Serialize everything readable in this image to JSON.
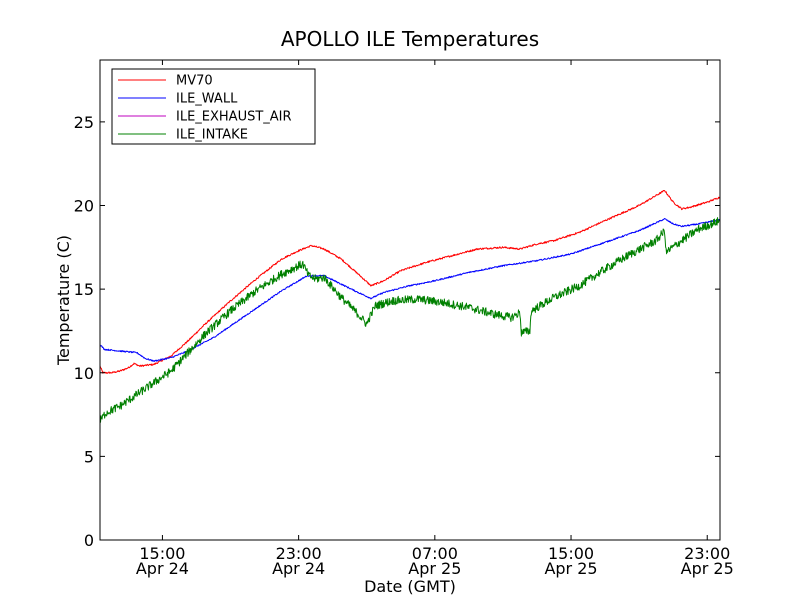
{
  "chart_data": {
    "type": "line",
    "title": "APOLLO ILE Temperatures",
    "xlabel": "Date (GMT)",
    "ylabel": "Temperature (C)",
    "xlim": [
      "2014-04-24T11:20",
      "2014-04-25T23:45"
    ],
    "ylim": [
      0,
      28.7
    ],
    "y_ticks": [
      0,
      5,
      10,
      15,
      20,
      25
    ],
    "x_ticks": [
      {
        "x": "2014-04-24T15:00",
        "label": "15:00",
        "date_label": "Apr 24"
      },
      {
        "x": "2014-04-24T23:00",
        "label": "23:00",
        "date_label": "Apr 24"
      },
      {
        "x": "2014-04-25T07:00",
        "label": "07:00",
        "date_label": "Apr 25"
      },
      {
        "x": "2014-04-25T15:00",
        "label": "15:00",
        "date_label": "Apr 25"
      },
      {
        "x": "2014-04-25T23:00",
        "label": "23:00",
        "date_label": "Apr 25"
      }
    ],
    "grid": false,
    "legend_position": "top-left",
    "series": [
      {
        "name": "MV70",
        "color": "#ff0000",
        "noise": 0.05,
        "points": [
          [
            "2014-04-24T11:20",
            10.4
          ],
          [
            "2014-04-24T11:30",
            10.0
          ],
          [
            "2014-04-24T12:00",
            10.0
          ],
          [
            "2014-04-24T12:30",
            10.1
          ],
          [
            "2014-04-24T13:00",
            10.3
          ],
          [
            "2014-04-24T13:20",
            10.55
          ],
          [
            "2014-04-24T13:40",
            10.4
          ],
          [
            "2014-04-24T14:30",
            10.5
          ],
          [
            "2014-04-24T15:30",
            11.0
          ],
          [
            "2014-04-24T16:30",
            11.9
          ],
          [
            "2014-04-24T17:30",
            12.9
          ],
          [
            "2014-04-24T19:00",
            14.3
          ],
          [
            "2014-04-24T20:30",
            15.6
          ],
          [
            "2014-04-24T22:00",
            16.8
          ],
          [
            "2014-04-24T23:00",
            17.3
          ],
          [
            "2014-04-24T23:45",
            17.6
          ],
          [
            "2014-04-25T00:30",
            17.4
          ],
          [
            "2014-04-25T01:30",
            16.8
          ],
          [
            "2014-04-25T02:30",
            15.9
          ],
          [
            "2014-04-25T03:15",
            15.2
          ],
          [
            "2014-04-25T04:00",
            15.5
          ],
          [
            "2014-04-25T05:00",
            16.1
          ],
          [
            "2014-04-25T06:30",
            16.6
          ],
          [
            "2014-04-25T08:00",
            17.0
          ],
          [
            "2014-04-25T09:30",
            17.4
          ],
          [
            "2014-04-25T11:00",
            17.5
          ],
          [
            "2014-04-25T12:00",
            17.4
          ],
          [
            "2014-04-25T13:00",
            17.7
          ],
          [
            "2014-04-25T14:00",
            17.9
          ],
          [
            "2014-04-25T15:30",
            18.4
          ],
          [
            "2014-04-25T17:00",
            19.1
          ],
          [
            "2014-04-25T19:00",
            20.0
          ],
          [
            "2014-04-25T20:30",
            20.9
          ],
          [
            "2014-04-25T21:00",
            20.2
          ],
          [
            "2014-04-25T21:30",
            19.8
          ],
          [
            "2014-04-25T22:00",
            19.9
          ],
          [
            "2014-04-25T23:00",
            20.2
          ],
          [
            "2014-04-25T23:45",
            20.5
          ]
        ]
      },
      {
        "name": "ILE_WALL",
        "color": "#0000ff",
        "noise": 0.04,
        "points": [
          [
            "2014-04-24T11:20",
            11.7
          ],
          [
            "2014-04-24T11:35",
            11.4
          ],
          [
            "2014-04-24T12:30",
            11.3
          ],
          [
            "2014-04-24T13:30",
            11.2
          ],
          [
            "2014-04-24T14:00",
            10.85
          ],
          [
            "2014-04-24T14:30",
            10.7
          ],
          [
            "2014-04-24T15:30",
            10.9
          ],
          [
            "2014-04-24T16:30",
            11.3
          ],
          [
            "2014-04-24T18:00",
            12.1
          ],
          [
            "2014-04-24T20:00",
            13.5
          ],
          [
            "2014-04-24T22:00",
            14.9
          ],
          [
            "2014-04-24T23:30",
            15.8
          ],
          [
            "2014-04-25T00:30",
            15.8
          ],
          [
            "2014-04-25T01:30",
            15.3
          ],
          [
            "2014-04-25T02:30",
            14.8
          ],
          [
            "2014-04-25T03:15",
            14.45
          ],
          [
            "2014-04-25T04:00",
            14.8
          ],
          [
            "2014-04-25T05:30",
            15.2
          ],
          [
            "2014-04-25T07:00",
            15.5
          ],
          [
            "2014-04-25T09:00",
            16.0
          ],
          [
            "2014-04-25T11:00",
            16.4
          ],
          [
            "2014-04-25T13:00",
            16.7
          ],
          [
            "2014-04-25T15:00",
            17.1
          ],
          [
            "2014-04-25T17:00",
            17.8
          ],
          [
            "2014-04-25T19:00",
            18.5
          ],
          [
            "2014-04-25T20:30",
            19.2
          ],
          [
            "2014-04-25T21:00",
            18.9
          ],
          [
            "2014-04-25T21:30",
            18.75
          ],
          [
            "2014-04-25T22:30",
            18.9
          ],
          [
            "2014-04-25T23:45",
            19.15
          ]
        ]
      },
      {
        "name": "ILE_EXHAUST_AIR",
        "color": "#bf00bf",
        "noise": 0,
        "points": []
      },
      {
        "name": "ILE_INTAKE",
        "color": "#008000",
        "noise": 0.25,
        "points": [
          [
            "2014-04-24T11:20",
            7.1
          ],
          [
            "2014-04-24T11:40",
            7.6
          ],
          [
            "2014-04-24T12:30",
            8.0
          ],
          [
            "2014-04-24T13:30",
            8.7
          ],
          [
            "2014-04-24T14:30",
            9.4
          ],
          [
            "2014-04-24T15:30",
            10.1
          ],
          [
            "2014-04-24T16:30",
            11.2
          ],
          [
            "2014-04-24T17:30",
            12.3
          ],
          [
            "2014-04-24T19:00",
            13.7
          ],
          [
            "2014-04-24T20:30",
            14.9
          ],
          [
            "2014-04-24T22:00",
            15.9
          ],
          [
            "2014-04-24T23:00",
            16.4
          ],
          [
            "2014-04-24T23:15",
            16.5
          ],
          [
            "2014-04-24T23:35",
            15.8
          ],
          [
            "2014-04-25T00:00",
            15.6
          ],
          [
            "2014-04-25T00:30",
            15.7
          ],
          [
            "2014-04-25T01:30",
            14.5
          ],
          [
            "2014-04-25T02:30",
            13.5
          ],
          [
            "2014-04-25T03:00",
            12.9
          ],
          [
            "2014-04-25T03:10",
            13.3
          ],
          [
            "2014-04-25T03:30",
            14.0
          ],
          [
            "2014-04-25T04:30",
            14.3
          ],
          [
            "2014-04-25T06:00",
            14.4
          ],
          [
            "2014-04-25T07:30",
            14.2
          ],
          [
            "2014-04-25T09:00",
            13.9
          ],
          [
            "2014-04-25T10:30",
            13.5
          ],
          [
            "2014-04-25T11:30",
            13.3
          ],
          [
            "2014-04-25T12:00",
            13.6
          ],
          [
            "2014-04-25T12:05",
            12.4
          ],
          [
            "2014-04-25T12:35",
            12.5
          ],
          [
            "2014-04-25T12:40",
            13.7
          ],
          [
            "2014-04-25T14:00",
            14.5
          ],
          [
            "2014-04-25T15:30",
            15.2
          ],
          [
            "2014-04-25T17:00",
            16.2
          ],
          [
            "2014-04-25T18:30",
            17.1
          ],
          [
            "2014-04-25T20:00",
            17.9
          ],
          [
            "2014-04-25T20:30",
            18.5
          ],
          [
            "2014-04-25T20:35",
            17.2
          ],
          [
            "2014-04-25T21:30",
            17.9
          ],
          [
            "2014-04-25T22:30",
            18.6
          ],
          [
            "2014-04-25T23:45",
            19.1
          ]
        ]
      }
    ]
  }
}
